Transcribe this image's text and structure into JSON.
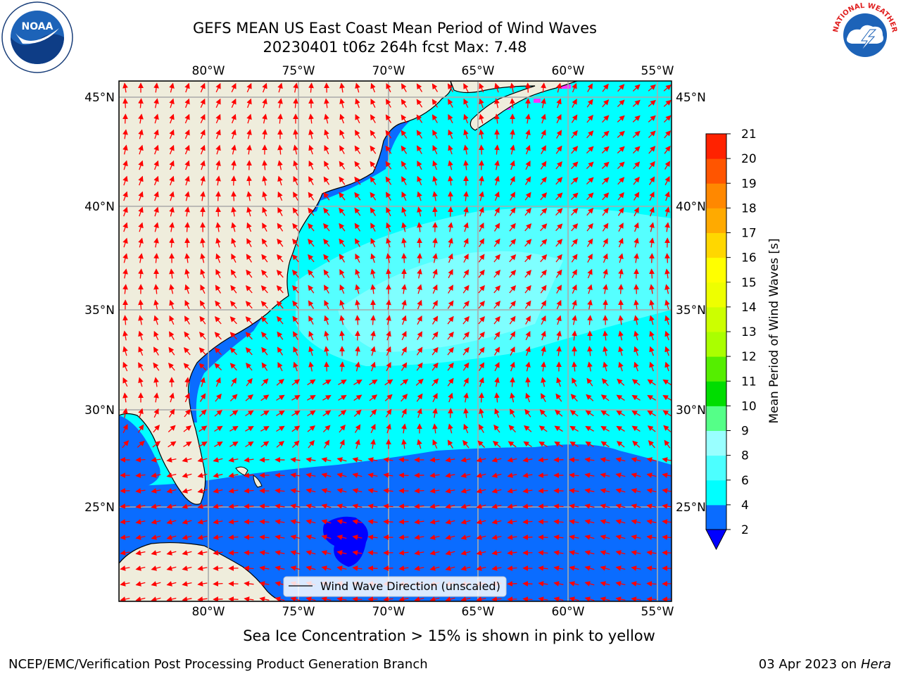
{
  "header": {
    "title_line1": "GEFS MEAN US East Coast Mean Period of Wind Waves",
    "title_line2": "20230401 t06z 264h fcst   Max: 7.48"
  },
  "logos": {
    "left": {
      "name": "noaa-logo",
      "text": "NOAA"
    },
    "right": {
      "name": "nws-logo",
      "text": "NATIONAL WEATHER SERVICE"
    }
  },
  "map": {
    "lon_labels": [
      "80°W",
      "75°W",
      "70°W",
      "65°W",
      "60°W",
      "55°W"
    ],
    "lat_labels": [
      "45°N",
      "40°N",
      "35°N",
      "30°N",
      "25°N"
    ],
    "legend_label": "Wind Wave Direction (unscaled)",
    "arrow_color": "#ff0000",
    "land_color": "#efeddc"
  },
  "colorbar": {
    "label": "Mean Period of Wind Waves [s]",
    "ticks": [
      "2",
      "4",
      "6",
      "8",
      "9",
      "10",
      "11",
      "12",
      "13",
      "14",
      "15",
      "16",
      "17",
      "18",
      "19",
      "20",
      "21"
    ],
    "colors": [
      "#0a6cff",
      "#00ffff",
      "#4cffff",
      "#99ffff",
      "#55ff88",
      "#00dd00",
      "#55ee00",
      "#aaff00",
      "#ccff00",
      "#eeff00",
      "#ffff00",
      "#ffd700",
      "#ffaa00",
      "#ff8800",
      "#ff5500",
      "#ff2200",
      "#ff0000"
    ],
    "extend_color": "#0000ff"
  },
  "subtitle": "Sea Ice Concentration > 15% is shown in pink to yellow",
  "footer": {
    "left": "NCEP/EMC/Verification Post Processing Product Generation Branch",
    "right_date": "03 Apr 2023 on ",
    "right_host": "Hera"
  }
}
